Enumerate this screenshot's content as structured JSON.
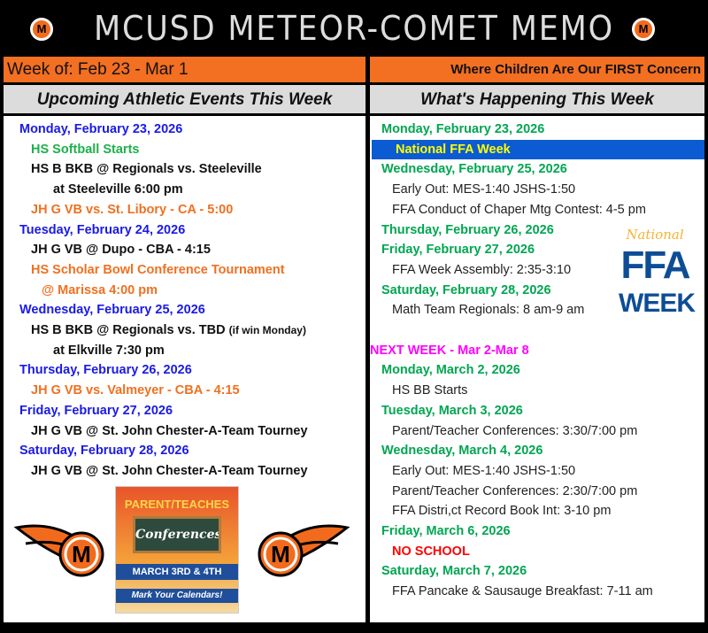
{
  "header": {
    "title": "MCUSD METEOR-COMET MEMO",
    "week_of": "Week of: Feb 23 - Mar 1",
    "motto": "Where Children Are Our FIRST Concern",
    "logo_letter": "M"
  },
  "colors": {
    "orange": "#f36f21",
    "blue_date": "#1a1ae6",
    "green_date": "#00a651",
    "event_orange": "#f07020",
    "highlight": "#0b5bd3",
    "next_week": "#ff00ff",
    "no_school": "#ff0000"
  },
  "left": {
    "heading": "Upcoming Athletic Events This Week",
    "lines": [
      {
        "text": "Monday, February 23, 2026",
        "style": "d-blue",
        "indent": 0
      },
      {
        "text": "HS Softball Starts",
        "style": "t-green",
        "indent": 1
      },
      {
        "text": "HS B BKB @ Regionals vs. Steeleville",
        "style": "t-black",
        "indent": 1
      },
      {
        "text": "at Steeleville 6:00 pm",
        "style": "t-black",
        "indent": 3
      },
      {
        "text": "JH G VB vs. St. Libory - CA - 5:00",
        "style": "t-orange",
        "indent": 1
      },
      {
        "text": "Tuesday, February 24, 2026",
        "style": "d-blue",
        "indent": 0
      },
      {
        "text": "JH G VB @ Dupo - CBA - 4:15",
        "style": "t-black",
        "indent": 1
      },
      {
        "text": "HS Scholar Bowl Conference Tournament",
        "style": "t-orange",
        "indent": 1
      },
      {
        "text": "@ Marissa 4:00 pm",
        "style": "t-orange",
        "indent": 2
      },
      {
        "text": "Wednesday, February 25, 2026",
        "style": "d-blue",
        "indent": 0
      },
      {
        "text": "HS B BKB @ Regionals vs. TBD",
        "suffix": "(if win Monday)",
        "style": "t-black",
        "indent": 1
      },
      {
        "text": "at Elkville 7:30 pm",
        "style": "t-black",
        "indent": 3
      },
      {
        "text": "Thursday, February 26, 2026",
        "style": "d-blue",
        "indent": 0
      },
      {
        "text": "JH G VB vs. Valmeyer - CBA - 4:15",
        "style": "t-orange",
        "indent": 1
      },
      {
        "text": "Friday, February 27, 2026",
        "style": "d-blue",
        "indent": 0
      },
      {
        "text": "JH G VB @ St. John Chester-A-Team Tourney",
        "style": "t-black",
        "indent": 1
      },
      {
        "text": "Saturday, February 28, 2026",
        "style": "d-blue",
        "indent": 0
      },
      {
        "text": "JH G VB @ St. John Chester-A-Team Tourney",
        "style": "t-black",
        "indent": 1
      }
    ]
  },
  "poster": {
    "line1": "PARENT/TEACHES",
    "line2": "Conferences",
    "line3": "MARCH 3RD & 4TH",
    "line4": "Mark Your Calendars!"
  },
  "ffa_logo": {
    "line1": "National",
    "line2": "FFA",
    "line3": "WEEK"
  },
  "right": {
    "heading": "What's Happening This Week",
    "lines": [
      {
        "text": "Monday, February 23, 2026",
        "style": "d-green",
        "indent": 0
      },
      {
        "text": "National FFA Week",
        "style": "t-hl",
        "indent": 1
      },
      {
        "text": "Wednesday, February 25, 2026",
        "style": "d-green",
        "indent": 0
      },
      {
        "text": "Early Out: MES-1:40 JSHS-1:50",
        "style": "t-plain",
        "indent": 1
      },
      {
        "text": "FFA Conduct of Chaper Mtg Contest: 4-5 pm",
        "style": "t-plain",
        "indent": 1
      },
      {
        "text": "Thursday, February 26, 2026",
        "style": "d-green",
        "indent": 0
      },
      {
        "text": "Friday, February 27, 2026",
        "style": "d-green",
        "indent": 0
      },
      {
        "text": "FFA Week Assembly: 2:35-3:10",
        "style": "t-plain",
        "indent": 1
      },
      {
        "text": "Saturday, February 28, 2026",
        "style": "d-green",
        "indent": 0
      },
      {
        "text": "Math Team Regionals: 8 am-9 am",
        "style": "t-plain",
        "indent": 1
      },
      {
        "text": "",
        "style": "t-plain",
        "indent": 0
      },
      {
        "text": "NEXT WEEK - Mar 2-Mar 8",
        "style": "t-magenta",
        "indent": -1
      },
      {
        "text": "Monday, March 2, 2026",
        "style": "d-green",
        "indent": 0
      },
      {
        "text": "HS BB Starts",
        "style": "t-plain",
        "indent": 1
      },
      {
        "text": "Tuesday, March 3, 2026",
        "style": "d-green",
        "indent": 0
      },
      {
        "text": "Parent/Teacher Conferences: 3:30/7:00 pm",
        "style": "t-plain",
        "indent": 1
      },
      {
        "text": "Wednesday, March 4, 2026",
        "style": "d-green",
        "indent": 0
      },
      {
        "text": "Early Out: MES-1:40 JSHS-1:50",
        "style": "t-plain",
        "indent": 1
      },
      {
        "text": "Parent/Teacher Conferences: 2:30/7:00 pm",
        "style": "t-plain",
        "indent": 1
      },
      {
        "text": "FFA Distri,ct Record Book Int: 3-10 pm",
        "style": "t-plain",
        "indent": 1
      },
      {
        "text": "Friday, March 6, 2026",
        "style": "d-green",
        "indent": 0
      },
      {
        "text": "NO SCHOOL",
        "style": "t-red",
        "indent": 1
      },
      {
        "text": "Saturday, March 7, 2026",
        "style": "d-green",
        "indent": 0
      },
      {
        "text": "FFA Pancake & Sausauge Breakfast: 7-11 am",
        "style": "t-plain",
        "indent": 1
      }
    ]
  }
}
